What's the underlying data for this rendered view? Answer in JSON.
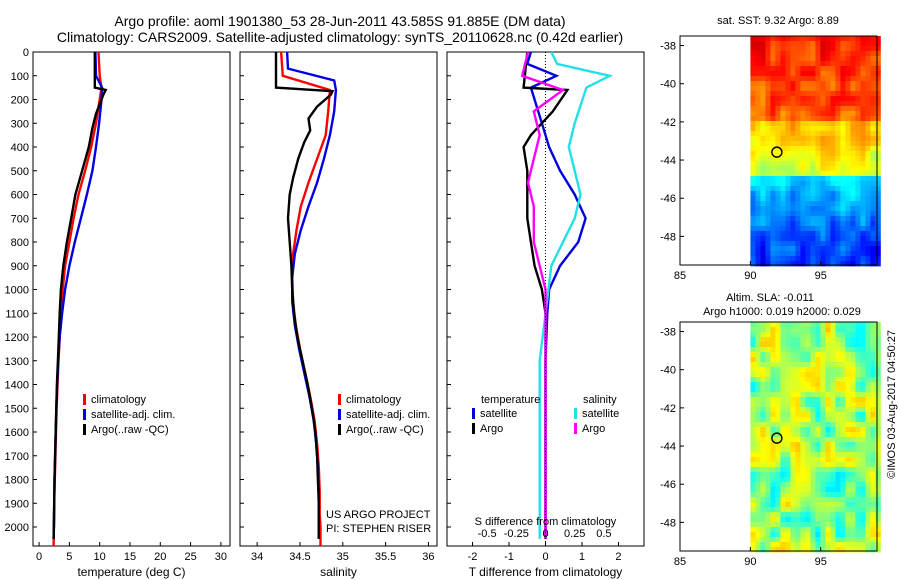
{
  "header": {
    "line1": "Argo profile: aoml 1901380_53 28-Jun-2011 43.585S 91.885E (DM data)",
    "line2": "Climatology: CARS2009. Satellite-adjusted climatology: synTS_20110628.nc (0.42d earlier)"
  },
  "project": {
    "line1": "US ARGO PROJECT",
    "line2": "PI: STEPHEN RISER"
  },
  "side_stamp": "©IMOS 03-Aug-2017 04:50:27",
  "colors": {
    "clim": "#ff0000",
    "sat": "#0000e0",
    "argo": "#000000",
    "sat_sal": "#22e0e8",
    "argo_sal": "#ff00ff"
  },
  "chart_data": [
    {
      "id": "temperature",
      "type": "line",
      "xlabel": "temperature (deg C)",
      "ylabel": "",
      "xlim": [
        -1,
        31.5
      ],
      "ylim": [
        0,
        2080
      ],
      "xticks": [
        0,
        5,
        10,
        15,
        20,
        25,
        30
      ],
      "yticks": [
        0,
        100,
        200,
        300,
        400,
        500,
        600,
        700,
        800,
        900,
        1000,
        1100,
        1200,
        1300,
        1400,
        1500,
        1600,
        1700,
        1800,
        1900,
        2000
      ],
      "legend": [
        "climatology",
        "satellite-adj. clim.",
        "Argo(..raw -QC)"
      ],
      "legend_position": "bottom-center",
      "series": [
        {
          "name": "climatology",
          "color": "clim",
          "points": [
            [
              9.8,
              0
            ],
            [
              10.0,
              100
            ],
            [
              10.3,
              150
            ],
            [
              10.0,
              200
            ],
            [
              9.4,
              300
            ],
            [
              8.6,
              400
            ],
            [
              7.6,
              500
            ],
            [
              6.5,
              600
            ],
            [
              5.7,
              700
            ],
            [
              5.0,
              800
            ],
            [
              4.3,
              900
            ],
            [
              3.9,
              1000
            ],
            [
              3.6,
              1100
            ],
            [
              3.4,
              1200
            ],
            [
              3.2,
              1300
            ],
            [
              3.05,
              1400
            ],
            [
              2.9,
              1500
            ],
            [
              2.8,
              1600
            ],
            [
              2.7,
              1700
            ],
            [
              2.6,
              1800
            ],
            [
              2.5,
              1900
            ],
            [
              2.45,
              2000
            ],
            [
              2.4,
              2080
            ]
          ]
        },
        {
          "name": "satellite-adj. clim.",
          "color": "sat",
          "points": [
            [
              9.3,
              0
            ],
            [
              9.4,
              100
            ],
            [
              10.4,
              150
            ],
            [
              10.3,
              200
            ],
            [
              9.9,
              300
            ],
            [
              9.4,
              400
            ],
            [
              8.8,
              500
            ],
            [
              7.9,
              600
            ],
            [
              6.9,
              700
            ],
            [
              5.9,
              800
            ],
            [
              5.0,
              900
            ],
            [
              4.3,
              1000
            ],
            [
              3.8,
              1100
            ],
            [
              3.4,
              1200
            ],
            [
              3.15,
              1300
            ],
            [
              3.0,
              1400
            ],
            [
              2.85,
              1500
            ],
            [
              2.75,
              1600
            ],
            [
              2.65,
              1700
            ],
            [
              2.55,
              1800
            ],
            [
              2.5,
              1900
            ],
            [
              2.45,
              2000
            ],
            [
              2.4,
              2050
            ]
          ]
        },
        {
          "name": "Argo(..raw -QC)",
          "color": "argo",
          "points": [
            [
              9.2,
              0
            ],
            [
              9.2,
              150
            ],
            [
              11.0,
              160
            ],
            [
              10.6,
              180
            ],
            [
              9.4,
              260
            ],
            [
              8.8,
              320
            ],
            [
              8.2,
              400
            ],
            [
              7.1,
              500
            ],
            [
              6.0,
              600
            ],
            [
              5.3,
              700
            ],
            [
              4.6,
              800
            ],
            [
              4.0,
              900
            ],
            [
              3.6,
              1000
            ],
            [
              3.4,
              1100
            ],
            [
              3.25,
              1200
            ],
            [
              3.1,
              1300
            ],
            [
              2.95,
              1400
            ],
            [
              2.85,
              1500
            ],
            [
              2.75,
              1600
            ],
            [
              2.65,
              1700
            ],
            [
              2.55,
              1800
            ],
            [
              2.5,
              1900
            ],
            [
              2.45,
              2000
            ],
            [
              2.4,
              2050
            ]
          ]
        }
      ]
    },
    {
      "id": "salinity",
      "type": "line",
      "xlabel": "salinity",
      "ylabel": "",
      "xlim": [
        33.8,
        36.1
      ],
      "ylim": [
        0,
        2080
      ],
      "xticks": [
        34,
        34.5,
        35,
        35.5,
        36
      ],
      "xticklabels": [
        "34",
        "34.5",
        "35",
        "35.5",
        "36"
      ],
      "legend": [
        "climatology",
        "satellite-adj. clim.",
        "Argo(..raw -QC)"
      ],
      "legend_position": "bottom-right",
      "series": [
        {
          "name": "climatology",
          "color": "clim",
          "points": [
            [
              34.28,
              0
            ],
            [
              34.3,
              100
            ],
            [
              34.85,
              160
            ],
            [
              34.83,
              250
            ],
            [
              34.8,
              350
            ],
            [
              34.7,
              450
            ],
            [
              34.6,
              550
            ],
            [
              34.51,
              650
            ],
            [
              34.46,
              750
            ],
            [
              34.42,
              850
            ],
            [
              34.41,
              950
            ],
            [
              34.42,
              1050
            ],
            [
              34.45,
              1150
            ],
            [
              34.5,
              1250
            ],
            [
              34.56,
              1350
            ],
            [
              34.62,
              1450
            ],
            [
              34.67,
              1550
            ],
            [
              34.7,
              1650
            ],
            [
              34.72,
              1750
            ],
            [
              34.73,
              1850
            ],
            [
              34.73,
              1950
            ],
            [
              34.74,
              2000
            ],
            [
              34.74,
              2080
            ]
          ]
        },
        {
          "name": "satellite-adj. clim.",
          "color": "sat",
          "points": [
            [
              34.35,
              0
            ],
            [
              34.36,
              70
            ],
            [
              34.9,
              120
            ],
            [
              34.92,
              160
            ],
            [
              34.9,
              250
            ],
            [
              34.85,
              350
            ],
            [
              34.78,
              450
            ],
            [
              34.7,
              550
            ],
            [
              34.6,
              650
            ],
            [
              34.51,
              750
            ],
            [
              34.44,
              850
            ],
            [
              34.41,
              950
            ],
            [
              34.41,
              1050
            ],
            [
              34.44,
              1150
            ],
            [
              34.49,
              1250
            ],
            [
              34.55,
              1350
            ],
            [
              34.61,
              1450
            ],
            [
              34.66,
              1550
            ],
            [
              34.69,
              1650
            ],
            [
              34.71,
              1750
            ],
            [
              34.72,
              1850
            ],
            [
              34.72,
              1950
            ],
            [
              34.72,
              2050
            ]
          ]
        },
        {
          "name": "Argo(..raw -QC)",
          "color": "argo",
          "points": [
            [
              34.22,
              0
            ],
            [
              34.22,
              150
            ],
            [
              34.88,
              165
            ],
            [
              34.86,
              180
            ],
            [
              34.7,
              230
            ],
            [
              34.6,
              280
            ],
            [
              34.62,
              330
            ],
            [
              34.55,
              380
            ],
            [
              34.48,
              450
            ],
            [
              34.42,
              530
            ],
            [
              34.38,
              600
            ],
            [
              34.36,
              700
            ],
            [
              34.38,
              800
            ],
            [
              34.4,
              900
            ],
            [
              34.41,
              1000
            ],
            [
              34.43,
              1100
            ],
            [
              34.47,
              1200
            ],
            [
              34.53,
              1300
            ],
            [
              34.59,
              1400
            ],
            [
              34.64,
              1500
            ],
            [
              34.68,
              1600
            ],
            [
              34.7,
              1700
            ],
            [
              34.71,
              1800
            ],
            [
              34.72,
              1900
            ],
            [
              34.72,
              2000
            ],
            [
              34.72,
              2050
            ]
          ]
        }
      ]
    },
    {
      "id": "difference",
      "type": "line",
      "xlabel": "T difference from climatology",
      "top_label": "S difference from climatology",
      "xlim": [
        -2.7,
        2.7
      ],
      "ylim": [
        0,
        2080
      ],
      "xticks": [
        -2,
        -1,
        0,
        1,
        2
      ],
      "xticklabels": [
        "-2",
        "-1",
        "0",
        "1",
        "2"
      ],
      "sticks": [
        -0.5,
        -0.25,
        0,
        0.25,
        0.5
      ],
      "sticklabels": [
        "-0.5",
        "-0.25",
        "0",
        "0.25",
        "0.5"
      ],
      "legend_titles": [
        "temperature",
        "salinity"
      ],
      "legend": [
        "satellite",
        "Argo",
        "satellite",
        "Argo"
      ],
      "series": [
        {
          "name": "T satellite",
          "color": "sat",
          "points": [
            [
              -0.4,
              0
            ],
            [
              -0.5,
              50
            ],
            [
              0.3,
              100
            ],
            [
              -0.4,
              150
            ],
            [
              -0.1,
              300
            ],
            [
              0.1,
              400
            ],
            [
              0.4,
              500
            ],
            [
              0.8,
              600
            ],
            [
              1.1,
              700
            ],
            [
              0.9,
              800
            ],
            [
              0.4,
              900
            ],
            [
              0.1,
              1000
            ],
            [
              0.05,
              1100
            ],
            [
              0,
              1300
            ],
            [
              0,
              2050
            ]
          ]
        },
        {
          "name": "T Argo",
          "color": "argo",
          "points": [
            [
              -0.5,
              0
            ],
            [
              -0.6,
              150
            ],
            [
              0.6,
              160
            ],
            [
              0.2,
              250
            ],
            [
              -0.4,
              350
            ],
            [
              -0.6,
              400
            ],
            [
              -0.5,
              500
            ],
            [
              -0.5,
              700
            ],
            [
              -0.4,
              800
            ],
            [
              -0.3,
              900
            ],
            [
              -0.1,
              1000
            ],
            [
              0,
              1100
            ],
            [
              0,
              2050
            ]
          ]
        },
        {
          "name": "S satellite",
          "color": "sat_sal",
          "points": [
            [
              0.05,
              0
            ],
            [
              0.1,
              50
            ],
            [
              0.55,
              100
            ],
            [
              0.35,
              150
            ],
            [
              0.25,
              300
            ],
            [
              0.2,
              400
            ],
            [
              0.25,
              500
            ],
            [
              0.3,
              600
            ],
            [
              0.25,
              700
            ],
            [
              0.15,
              800
            ],
            [
              0.05,
              900
            ],
            [
              0,
              1100
            ],
            [
              -0.05,
              1300
            ],
            [
              -0.05,
              2050
            ]
          ]
        },
        {
          "name": "S Argo",
          "color": "argo_sal",
          "points": [
            [
              -0.15,
              0
            ],
            [
              -0.2,
              100
            ],
            [
              0.15,
              160
            ],
            [
              -0.1,
              250
            ],
            [
              -0.05,
              350
            ],
            [
              -0.1,
              450
            ],
            [
              -0.15,
              550
            ],
            [
              -0.1,
              650
            ],
            [
              -0.1,
              800
            ],
            [
              0,
              1000
            ],
            [
              0,
              2050
            ]
          ]
        }
      ]
    },
    {
      "id": "map-sst",
      "type": "heatmap",
      "title": "sat. SST: 9.32 Argo: 8.89",
      "xlim": [
        85,
        99
      ],
      "ylim": [
        -49.5,
        -37.5
      ],
      "xticks": [
        85,
        90,
        95
      ],
      "yticks": [
        -38,
        -40,
        -42,
        -44,
        -46,
        -48
      ],
      "data_lon_start": 90,
      "argo_position": [
        91.885,
        -43.585
      ]
    },
    {
      "id": "map-sla",
      "type": "heatmap",
      "title": "Altim. SLA: -0.011",
      "subtitle": "Argo h1000: 0.019 h2000: 0.029",
      "xlim": [
        85,
        99
      ],
      "ylim": [
        -49.5,
        -37.5
      ],
      "xticks": [
        85,
        90,
        95
      ],
      "yticks": [
        -38,
        -40,
        -42,
        -44,
        -46,
        -48
      ],
      "data_lon_start": 90,
      "argo_position": [
        91.885,
        -43.585
      ]
    }
  ]
}
